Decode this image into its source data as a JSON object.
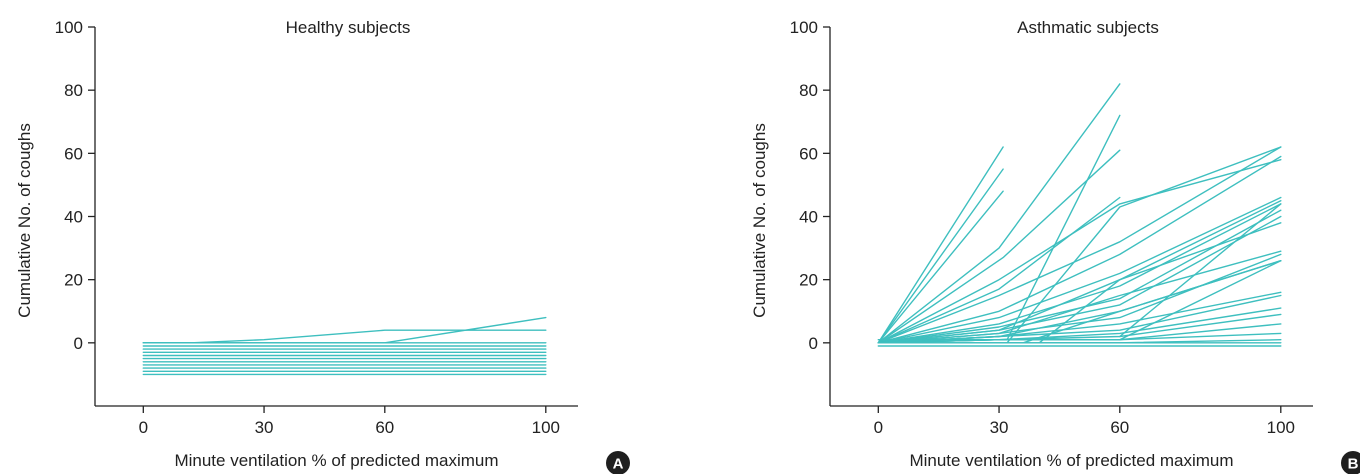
{
  "line_color": "#3ebfbf",
  "chart_data": [
    {
      "type": "line",
      "panel_label": "A",
      "title": "Healthy subjects",
      "xlabel": "Minute ventilation % of predicted maximum",
      "ylabel": "Cumulative No. of coughs",
      "xlim": [
        -12,
        108
      ],
      "ylim": [
        -20,
        100
      ],
      "x_ticks": [
        0,
        30,
        60,
        100
      ],
      "y_ticks": [
        0,
        20,
        40,
        60,
        80,
        100
      ],
      "grid": false,
      "legend": "none",
      "series": [
        {
          "points": [
            [
              0,
              0
            ],
            [
              12,
              0
            ],
            [
              30,
              1
            ],
            [
              60,
              4
            ],
            [
              100,
              4
            ]
          ]
        },
        {
          "points": [
            [
              0,
              0
            ],
            [
              60,
              0
            ],
            [
              100,
              8
            ]
          ]
        },
        {
          "points": [
            [
              0,
              0
            ],
            [
              100,
              0
            ]
          ]
        },
        {
          "points": [
            [
              0,
              -1
            ],
            [
              100,
              -1
            ]
          ]
        },
        {
          "points": [
            [
              0,
              -2
            ],
            [
              100,
              -2
            ]
          ]
        },
        {
          "points": [
            [
              0,
              -3
            ],
            [
              100,
              -3
            ]
          ]
        },
        {
          "points": [
            [
              0,
              -4
            ],
            [
              100,
              -4
            ]
          ]
        },
        {
          "points": [
            [
              0,
              -5
            ],
            [
              100,
              -5
            ]
          ]
        },
        {
          "points": [
            [
              0,
              -6
            ],
            [
              100,
              -6
            ]
          ]
        },
        {
          "points": [
            [
              0,
              -7
            ],
            [
              100,
              -7
            ]
          ]
        },
        {
          "points": [
            [
              0,
              -8
            ],
            [
              100,
              -8
            ]
          ]
        },
        {
          "points": [
            [
              0,
              -9
            ],
            [
              100,
              -9
            ]
          ]
        },
        {
          "points": [
            [
              0,
              -10
            ],
            [
              100,
              -10
            ]
          ]
        }
      ]
    },
    {
      "type": "line",
      "panel_label": "B",
      "title": "Asthmatic subjects",
      "xlabel": "Minute ventilation % of predicted maximum",
      "ylabel": "Cumulative No. of coughs",
      "xlim": [
        -12,
        108
      ],
      "ylim": [
        -20,
        100
      ],
      "x_ticks": [
        0,
        30,
        60,
        100
      ],
      "y_ticks": [
        0,
        20,
        40,
        60,
        80,
        100
      ],
      "grid": false,
      "legend": "none",
      "series": [
        {
          "points": [
            [
              0,
              0
            ],
            [
              31,
              62
            ]
          ]
        },
        {
          "points": [
            [
              0,
              0
            ],
            [
              31,
              55
            ]
          ]
        },
        {
          "points": [
            [
              0,
              0
            ],
            [
              31,
              48
            ]
          ]
        },
        {
          "points": [
            [
              0,
              0
            ],
            [
              30,
              30
            ],
            [
              60,
              82
            ]
          ]
        },
        {
          "points": [
            [
              0,
              0
            ],
            [
              31,
              27
            ],
            [
              60,
              61
            ]
          ]
        },
        {
          "points": [
            [
              0,
              1
            ],
            [
              32,
              1
            ],
            [
              60,
              72
            ]
          ]
        },
        {
          "points": [
            [
              0,
              0
            ],
            [
              30,
              17
            ],
            [
              60,
              46
            ]
          ]
        },
        {
          "points": [
            [
              0,
              0
            ],
            [
              30,
              20
            ],
            [
              60,
              44
            ],
            [
              100,
              58
            ]
          ]
        },
        {
          "points": [
            [
              0,
              0
            ],
            [
              30,
              15
            ],
            [
              60,
              32
            ],
            [
              100,
              62
            ]
          ]
        },
        {
          "points": [
            [
              0,
              0
            ],
            [
              30,
              10
            ],
            [
              60,
              28
            ],
            [
              100,
              59
            ]
          ]
        },
        {
          "points": [
            [
              0,
              0
            ],
            [
              30,
              8
            ],
            [
              60,
              22
            ],
            [
              100,
              46
            ]
          ]
        },
        {
          "points": [
            [
              0,
              0
            ],
            [
              30,
              6
            ],
            [
              60,
              18
            ],
            [
              100,
              44
            ]
          ]
        },
        {
          "points": [
            [
              0,
              0
            ],
            [
              30,
              5
            ],
            [
              60,
              14
            ],
            [
              100,
              42
            ]
          ]
        },
        {
          "points": [
            [
              0,
              0
            ],
            [
              30,
              4
            ],
            [
              60,
              12
            ],
            [
              100,
              40
            ]
          ]
        },
        {
          "points": [
            [
              0,
              0
            ],
            [
              30,
              4
            ],
            [
              60,
              20
            ],
            [
              100,
              38
            ]
          ]
        },
        {
          "points": [
            [
              0,
              0
            ],
            [
              30,
              3
            ],
            [
              60,
              15
            ],
            [
              100,
              29
            ]
          ]
        },
        {
          "points": [
            [
              0,
              0
            ],
            [
              30,
              3
            ],
            [
              60,
              8
            ],
            [
              100,
              28
            ]
          ]
        },
        {
          "points": [
            [
              0,
              0
            ],
            [
              30,
              2
            ],
            [
              60,
              10
            ],
            [
              100,
              26
            ]
          ]
        },
        {
          "points": [
            [
              0,
              0
            ],
            [
              30,
              2
            ],
            [
              60,
              6
            ],
            [
              100,
              16
            ]
          ]
        },
        {
          "points": [
            [
              0,
              0
            ],
            [
              30,
              2
            ],
            [
              60,
              4
            ],
            [
              100,
              15
            ]
          ]
        },
        {
          "points": [
            [
              0,
              0
            ],
            [
              30,
              1
            ],
            [
              60,
              3
            ],
            [
              100,
              11
            ]
          ]
        },
        {
          "points": [
            [
              0,
              0
            ],
            [
              30,
              1
            ],
            [
              60,
              2
            ],
            [
              100,
              9
            ]
          ]
        },
        {
          "points": [
            [
              0,
              0
            ],
            [
              30,
              1
            ],
            [
              60,
              1
            ],
            [
              100,
              6
            ]
          ]
        },
        {
          "points": [
            [
              0,
              0
            ],
            [
              30,
              1
            ],
            [
              60,
              1
            ],
            [
              100,
              3
            ]
          ]
        },
        {
          "points": [
            [
              0,
              0
            ],
            [
              30,
              0
            ],
            [
              60,
              0
            ],
            [
              100,
              1
            ]
          ]
        },
        {
          "points": [
            [
              0,
              0
            ],
            [
              100,
              0
            ]
          ]
        },
        {
          "points": [
            [
              0,
              -1
            ],
            [
              100,
              -1
            ]
          ]
        },
        {
          "points": [
            [
              32,
              0
            ],
            [
              60,
              43
            ],
            [
              100,
              62
            ]
          ]
        },
        {
          "points": [
            [
              40,
              0
            ],
            [
              60,
              20
            ],
            [
              100,
              45
            ]
          ]
        },
        {
          "points": [
            [
              60,
              2
            ],
            [
              100,
              44
            ]
          ]
        },
        {
          "points": [
            [
              60,
              1
            ],
            [
              100,
              26
            ]
          ]
        },
        {
          "points": [
            [
              36,
              0
            ],
            [
              60,
              10
            ],
            [
              100,
              26
            ]
          ]
        }
      ]
    }
  ]
}
